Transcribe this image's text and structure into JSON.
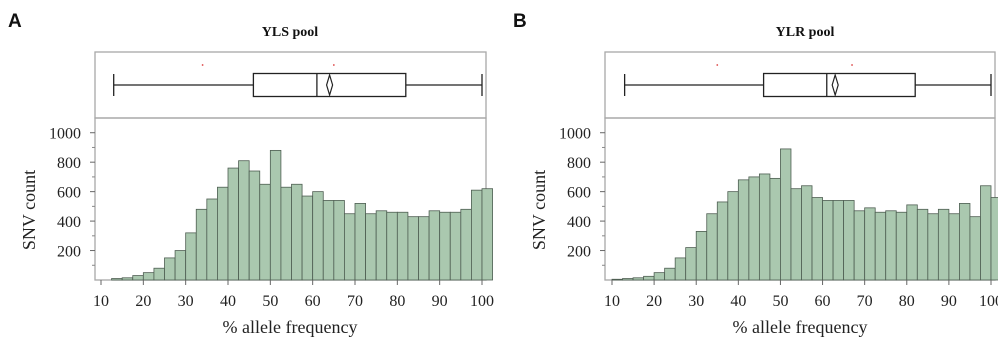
{
  "chart_data": [
    {
      "panel": "A",
      "type": "bar",
      "title": "YLS pool",
      "xlabel": "% allele frequency",
      "ylabel": "SNV count",
      "xlim": [
        10,
        102
      ],
      "ylim": [
        0,
        1100
      ],
      "xticks": [
        10,
        20,
        30,
        40,
        50,
        60,
        70,
        80,
        90,
        100
      ],
      "yticks": [
        200,
        400,
        600,
        800,
        1000
      ],
      "bin_width": 2.5,
      "bin_starts": [
        12.5,
        15,
        17.5,
        20,
        22.5,
        25,
        27.5,
        30,
        32.5,
        35,
        37.5,
        40,
        42.5,
        45,
        47.5,
        50,
        52.5,
        55,
        57.5,
        60,
        62.5,
        65,
        67.5,
        70,
        72.5,
        75,
        77.5,
        80,
        82.5,
        85,
        87.5,
        90,
        92.5,
        95,
        97.5,
        100
      ],
      "values": [
        10,
        15,
        30,
        50,
        80,
        150,
        200,
        320,
        480,
        550,
        630,
        760,
        810,
        740,
        650,
        880,
        630,
        650,
        570,
        600,
        540,
        540,
        450,
        520,
        450,
        470,
        460,
        460,
        430,
        430,
        470,
        460,
        460,
        480,
        610,
        620
      ],
      "boxplot": {
        "min": 13,
        "q1": 46,
        "median": 61,
        "mean": 64,
        "q3": 82,
        "max": 100,
        "outliers": [
          34,
          65
        ]
      }
    },
    {
      "panel": "B",
      "type": "bar",
      "title": "YLR pool",
      "xlabel": "% allele frequency",
      "ylabel": "SNV count",
      "xlim": [
        10,
        102
      ],
      "ylim": [
        0,
        1100
      ],
      "xticks": [
        10,
        20,
        30,
        40,
        50,
        60,
        70,
        80,
        90,
        100
      ],
      "yticks": [
        200,
        400,
        600,
        800,
        1000
      ],
      "bin_width": 2.5,
      "bin_starts": [
        10,
        12.5,
        15,
        17.5,
        20,
        22.5,
        25,
        27.5,
        30,
        32.5,
        35,
        37.5,
        40,
        42.5,
        45,
        47.5,
        50,
        52.5,
        55,
        57.5,
        60,
        62.5,
        65,
        67.5,
        70,
        72.5,
        75,
        77.5,
        80,
        82.5,
        85,
        87.5,
        90,
        92.5,
        95,
        97.5,
        100
      ],
      "values": [
        5,
        10,
        15,
        25,
        50,
        80,
        150,
        220,
        330,
        450,
        530,
        600,
        680,
        700,
        720,
        690,
        890,
        620,
        640,
        560,
        540,
        540,
        540,
        470,
        490,
        460,
        470,
        460,
        510,
        480,
        450,
        480,
        450,
        520,
        430,
        640,
        560
      ],
      "boxplot": {
        "min": 13,
        "q1": 46,
        "median": 61,
        "mean": 63,
        "q3": 82,
        "max": 100,
        "outliers": [
          35,
          67
        ]
      }
    }
  ],
  "colors": {
    "bar_fill": "#aac8af",
    "bar_stroke": "#4e5e52",
    "frame": "#a8a8a8",
    "box_line": "#222222",
    "outlier": "#dd4444"
  }
}
